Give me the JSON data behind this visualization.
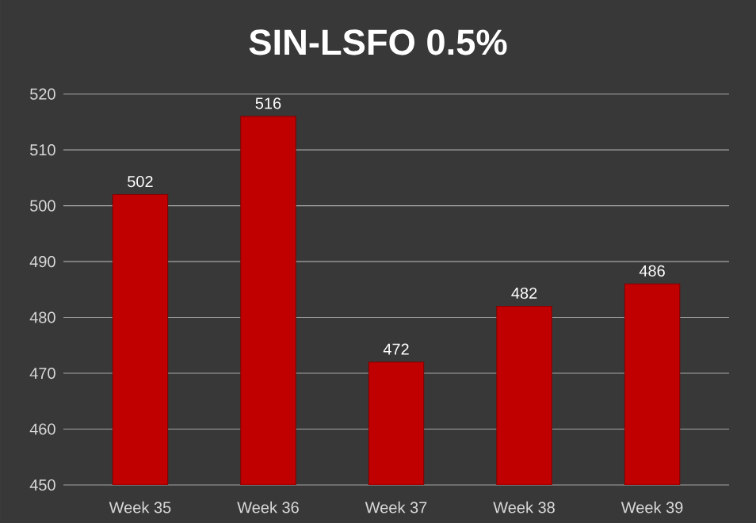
{
  "chart_data": {
    "type": "bar",
    "title": "SIN-LSFO 0.5%",
    "categories": [
      "Week 35",
      "Week 36",
      "Week 37",
      "Week 38",
      "Week 39"
    ],
    "values": [
      502,
      516,
      472,
      482,
      486
    ],
    "color": "#c00000",
    "ylim": [
      450,
      520
    ],
    "yticks": [
      450,
      460,
      470,
      480,
      490,
      500,
      510,
      520
    ],
    "grid": "y",
    "data_labels": true
  }
}
